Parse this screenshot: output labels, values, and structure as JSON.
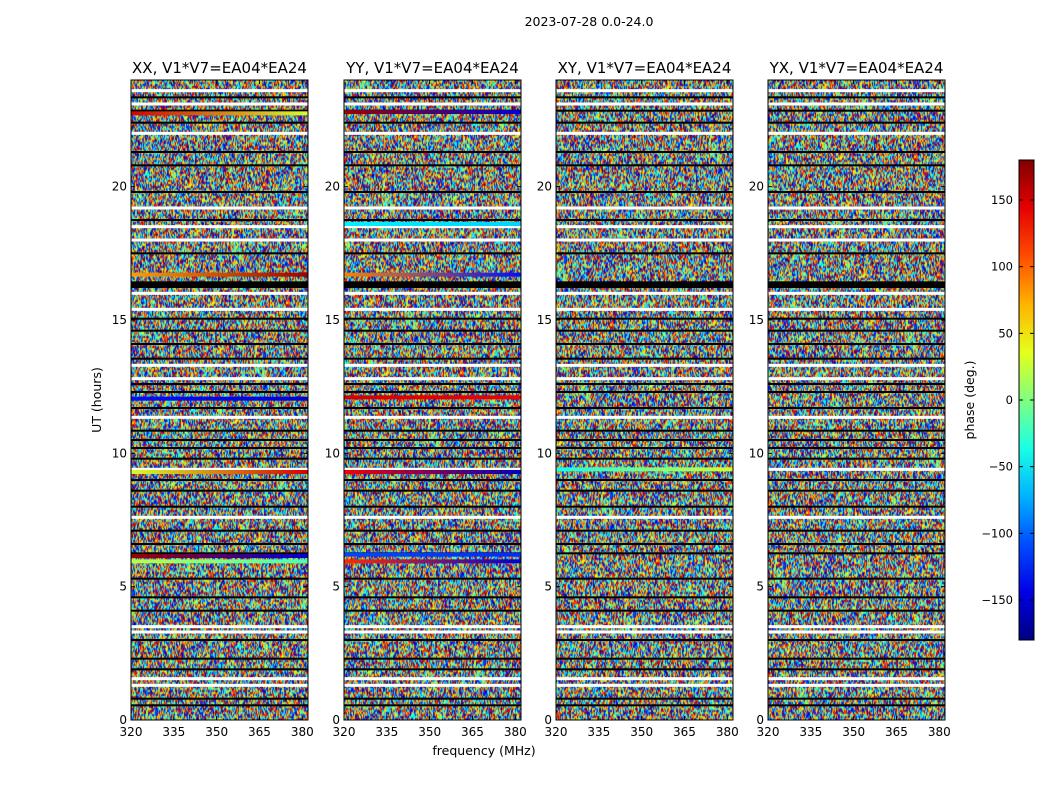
{
  "figure": {
    "suptitle": "2023-07-28 0.0-24.0"
  },
  "chart_data": {
    "type": "heatmap",
    "xlabel": "frequency (MHz)",
    "ylabel": "UT (hours)",
    "xlim": [
      320,
      382
    ],
    "ylim": [
      0,
      24
    ],
    "x_ticks": [
      320,
      335,
      350,
      365,
      380
    ],
    "y_ticks": [
      0,
      5,
      10,
      15,
      20
    ],
    "panels": [
      {
        "title": "XX, V1*V7=EA04*EA24",
        "correlation": "XX",
        "baseline": "V1*V7=EA04*EA24"
      },
      {
        "title": "YY, V1*V7=EA04*EA24",
        "correlation": "YY",
        "baseline": "V1*V7=EA04*EA24"
      },
      {
        "title": "XY, V1*V7=EA04*EA24",
        "correlation": "XY",
        "baseline": "V1*V7=EA04*EA24"
      },
      {
        "title": "YX, V1*V7=EA04*EA24",
        "correlation": "YX",
        "baseline": "V1*V7=EA04*EA24"
      }
    ],
    "colorbar": {
      "label": "phase (deg.)",
      "range": [
        -180,
        180
      ],
      "ticks": [
        -150,
        -100,
        -50,
        0,
        50,
        100,
        150
      ],
      "colormap": "jet"
    },
    "flagged_rows_ut": [
      1.3,
      1.55,
      3.3,
      3.5,
      7.6,
      9.4,
      11.35,
      12.8,
      13.3,
      15.4,
      16.0,
      18.0,
      18.5,
      19.2,
      22.0,
      23.1,
      23.6
    ],
    "masked_rows_ut": [
      0.55,
      0.8,
      1.9,
      2.3,
      3.0,
      4.1,
      4.6,
      5.3,
      6.25,
      6.6,
      7.1,
      8.0,
      8.6,
      9.0,
      9.8,
      10.2,
      10.5,
      10.85,
      11.7,
      12.3,
      12.6,
      13.55,
      14.1,
      14.6,
      15.05,
      17.5,
      18.75,
      19.8,
      20.8,
      21.3,
      22.4,
      22.85,
      23.35
    ],
    "solid_rows_ut": [
      {
        "from": 16.2,
        "to": 16.45
      }
    ],
    "coherent_rows_ut": [
      {
        "panel": "XX",
        "ut": 22.75,
        "start_phase": 150,
        "end_phase": 30
      },
      {
        "panel": "XX",
        "ut": 16.7,
        "start_phase": 80,
        "end_phase": 170
      },
      {
        "panel": "XX",
        "ut": 12.05,
        "start_phase": -130,
        "end_phase": -150
      },
      {
        "panel": "XX",
        "ut": 9.3,
        "start_phase": 30,
        "end_phase": 150
      },
      {
        "panel": "XX",
        "ut": 6.15,
        "start_phase": 170,
        "end_phase": -150
      },
      {
        "panel": "XX",
        "ut": 5.95,
        "start_phase": 20,
        "end_phase": -20
      },
      {
        "panel": "YY",
        "ut": 22.8,
        "start_phase": 170,
        "end_phase": -150
      },
      {
        "panel": "YY",
        "ut": 18.6,
        "start_phase": -50,
        "end_phase": -60
      },
      {
        "panel": "YY",
        "ut": 16.7,
        "start_phase": 90,
        "end_phase": -130
      },
      {
        "panel": "YY",
        "ut": 12.1,
        "start_phase": 150,
        "end_phase": 140
      },
      {
        "panel": "YY",
        "ut": 9.3,
        "start_phase": 140,
        "end_phase": -160
      },
      {
        "panel": "YY",
        "ut": 6.2,
        "start_phase": -110,
        "end_phase": -120
      },
      {
        "panel": "YY",
        "ut": 5.95,
        "start_phase": 120,
        "end_phase": -150
      },
      {
        "panel": "XY",
        "ut": 9.4,
        "start_phase": -40,
        "end_phase": 30
      }
    ]
  }
}
